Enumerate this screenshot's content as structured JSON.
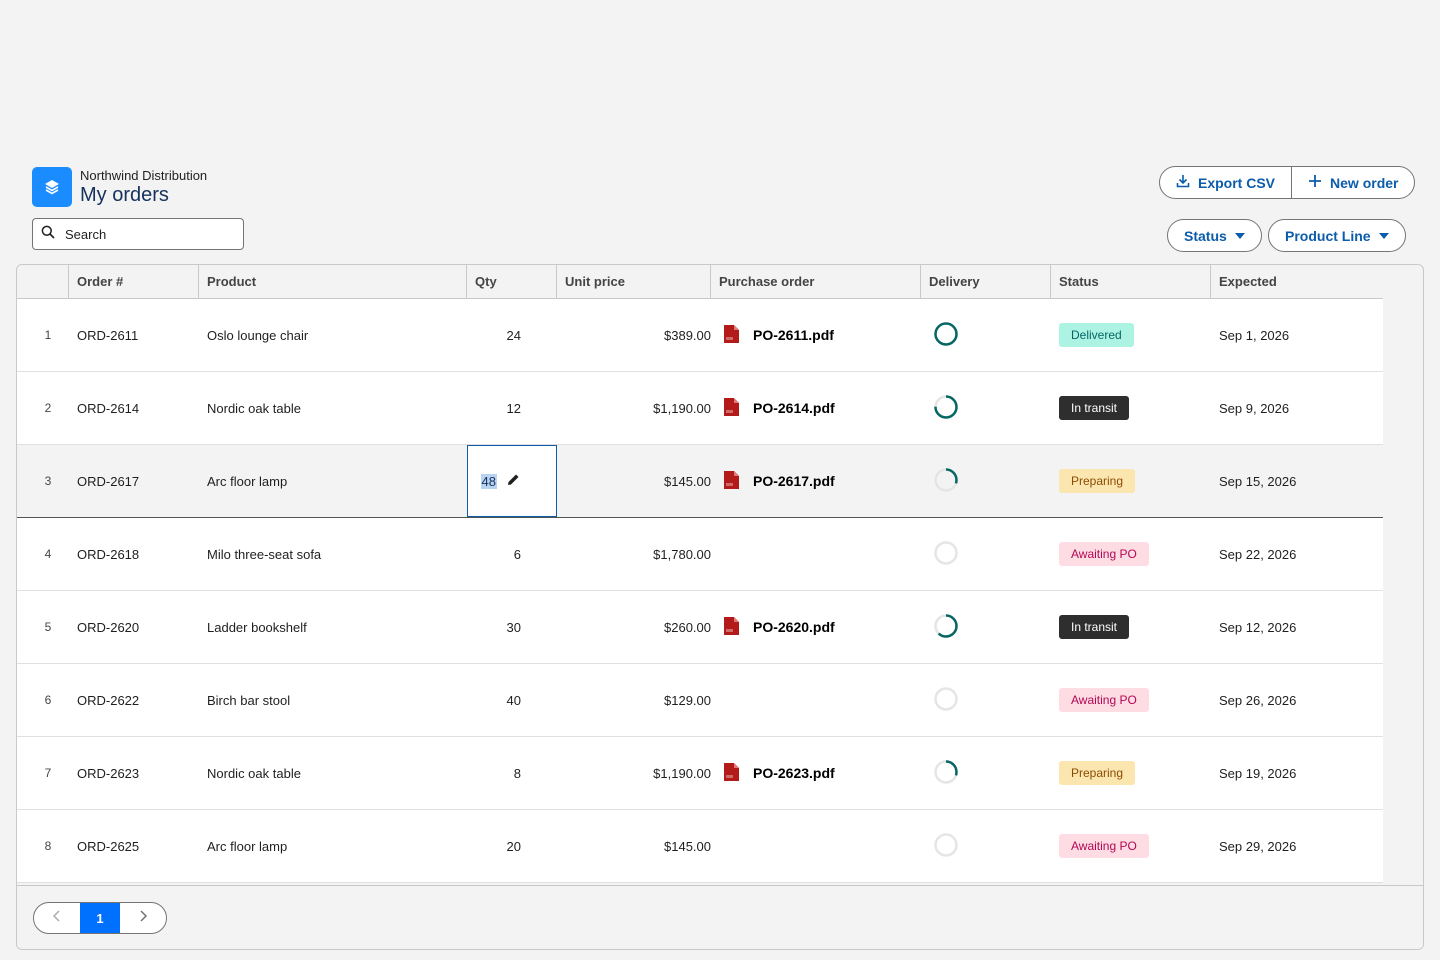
{
  "header": {
    "org_name": "Northwind Distribution",
    "title": "My orders",
    "logo_icon": "stack-icon",
    "logo_color": "#1a8cff"
  },
  "search": {
    "placeholder": "Search",
    "value": ""
  },
  "actions": {
    "export_label": "Export CSV",
    "new_label": "New order"
  },
  "filters": {
    "status_label": "Status",
    "product_line_label": "Product Line"
  },
  "columns": [
    "Order #",
    "Product",
    "Qty",
    "Unit price",
    "Purchase order",
    "Delivery",
    "Status",
    "Expected"
  ],
  "rows": [
    {
      "idx": "1",
      "order": "ORD-2611",
      "product": "Oslo lounge chair",
      "qty": "24",
      "price": "$389.00",
      "po": "PO-2611.pdf",
      "delivery_progress": 1.0,
      "status": "Delivered",
      "expected": "Sep 1, 2026"
    },
    {
      "idx": "2",
      "order": "ORD-2614",
      "product": "Nordic oak table",
      "qty": "12",
      "price": "$1,190.00",
      "po": "PO-2614.pdf",
      "delivery_progress": 0.75,
      "status": "In transit",
      "expected": "Sep 9, 2026"
    },
    {
      "idx": "3",
      "order": "ORD-2617",
      "product": "Arc floor lamp",
      "qty": "48",
      "price": "$145.00",
      "po": "PO-2617.pdf",
      "delivery_progress": 0.3,
      "status": "Preparing",
      "expected": "Sep 15, 2026",
      "editing_qty": true
    },
    {
      "idx": "4",
      "order": "ORD-2618",
      "product": "Milo three-seat sofa",
      "qty": "6",
      "price": "$1,780.00",
      "po": "",
      "delivery_progress": 0,
      "status": "Awaiting PO",
      "expected": "Sep 22, 2026"
    },
    {
      "idx": "5",
      "order": "ORD-2620",
      "product": "Ladder bookshelf",
      "qty": "30",
      "price": "$260.00",
      "po": "PO-2620.pdf",
      "delivery_progress": 0.62,
      "status": "In transit",
      "expected": "Sep 12, 2026"
    },
    {
      "idx": "6",
      "order": "ORD-2622",
      "product": "Birch bar stool",
      "qty": "40",
      "price": "$129.00",
      "po": "",
      "delivery_progress": 0,
      "status": "Awaiting PO",
      "expected": "Sep 26, 2026"
    },
    {
      "idx": "7",
      "order": "ORD-2623",
      "product": "Nordic oak table",
      "qty": "8",
      "price": "$1,190.00",
      "po": "PO-2623.pdf",
      "delivery_progress": 0.3,
      "status": "Preparing",
      "expected": "Sep 19, 2026"
    },
    {
      "idx": "8",
      "order": "ORD-2625",
      "product": "Arc floor lamp",
      "qty": "20",
      "price": "$145.00",
      "po": "",
      "delivery_progress": 0,
      "status": "Awaiting PO",
      "expected": "Sep 29, 2026"
    }
  ],
  "status_colors": {
    "Delivered": {
      "bg": "#acf3e4",
      "fg": "#056764"
    },
    "In transit": {
      "bg": "#2e2e2e",
      "fg": "#ffffff"
    },
    "Preparing": {
      "bg": "#fbe6b0",
      "fg": "#8c4b02"
    },
    "Awaiting PO": {
      "bg": "#fddde3",
      "fg": "#b60554"
    }
  },
  "progress_color": "#056764",
  "progress_track": "#e5e5e5",
  "pagination": {
    "current": "1"
  }
}
